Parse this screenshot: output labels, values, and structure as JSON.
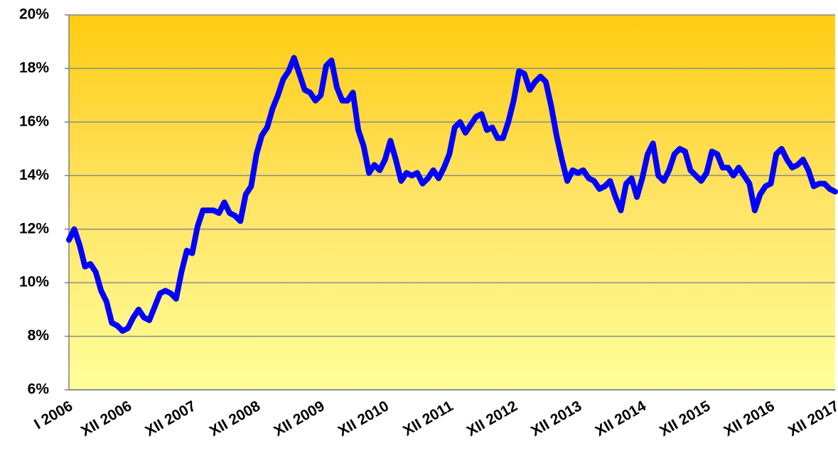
{
  "chart_data": {
    "type": "line",
    "categories": [
      "I 2006",
      null,
      null,
      null,
      null,
      null,
      null,
      null,
      null,
      null,
      null,
      "XII 2006",
      null,
      null,
      null,
      null,
      null,
      null,
      null,
      null,
      null,
      null,
      null,
      "XII 2007",
      null,
      null,
      null,
      null,
      null,
      null,
      null,
      null,
      null,
      null,
      null,
      "XII 2008",
      null,
      null,
      null,
      null,
      null,
      null,
      null,
      null,
      null,
      null,
      null,
      "XII 2009",
      null,
      null,
      null,
      null,
      null,
      null,
      null,
      null,
      null,
      null,
      null,
      "XII 2010",
      null,
      null,
      null,
      null,
      null,
      null,
      null,
      null,
      null,
      null,
      null,
      "XII 2011",
      null,
      null,
      null,
      null,
      null,
      null,
      null,
      null,
      null,
      null,
      null,
      "XII 2012",
      null,
      null,
      null,
      null,
      null,
      null,
      null,
      null,
      null,
      null,
      null,
      "XII 2013",
      null,
      null,
      null,
      null,
      null,
      null,
      null,
      null,
      null,
      null,
      null,
      "XII 2014",
      null,
      null,
      null,
      null,
      null,
      null,
      null,
      null,
      null,
      null,
      null,
      "XII 2015",
      null,
      null,
      null,
      null,
      null,
      null,
      null,
      null,
      null,
      null,
      null,
      "XII 2016",
      null,
      null,
      null,
      null,
      null,
      null,
      null,
      null,
      null,
      null,
      null,
      "XII 2017"
    ],
    "values": [
      11.6,
      12.0,
      11.4,
      10.6,
      10.7,
      10.4,
      9.7,
      9.3,
      8.5,
      8.4,
      8.2,
      8.3,
      8.7,
      9.0,
      8.7,
      8.6,
      9.1,
      9.6,
      9.7,
      9.6,
      9.4,
      10.4,
      11.2,
      11.1,
      12.1,
      12.7,
      12.7,
      12.7,
      12.6,
      13.0,
      12.6,
      12.5,
      12.3,
      13.3,
      13.6,
      14.8,
      15.5,
      15.8,
      16.5,
      17.0,
      17.6,
      17.9,
      18.4,
      17.8,
      17.2,
      17.1,
      16.8,
      17.0,
      18.1,
      18.3,
      17.3,
      16.8,
      16.8,
      17.1,
      15.7,
      15.1,
      14.1,
      14.4,
      14.2,
      14.6,
      15.3,
      14.6,
      13.8,
      14.1,
      14.0,
      14.1,
      13.7,
      13.9,
      14.2,
      13.9,
      14.3,
      14.8,
      15.8,
      16.0,
      15.6,
      15.9,
      16.2,
      16.3,
      15.7,
      15.8,
      15.4,
      15.4,
      16.0,
      16.8,
      17.9,
      17.8,
      17.2,
      17.5,
      17.7,
      17.5,
      16.6,
      15.5,
      14.6,
      13.8,
      14.2,
      14.1,
      14.2,
      13.9,
      13.8,
      13.5,
      13.6,
      13.8,
      13.2,
      12.7,
      13.7,
      13.9,
      13.2,
      13.9,
      14.8,
      15.2,
      14.0,
      13.8,
      14.2,
      14.8,
      15.0,
      14.9,
      14.2,
      14.0,
      13.8,
      14.1,
      14.9,
      14.8,
      14.3,
      14.3,
      14.0,
      14.3,
      14.0,
      13.7,
      12.7,
      13.3,
      13.6,
      13.7,
      14.8,
      15.0,
      14.6,
      14.3,
      14.4,
      14.6,
      14.2,
      13.6,
      13.7,
      13.7,
      13.5,
      13.4
    ],
    "color": "#0000ff",
    "ylim": [
      6,
      20
    ],
    "yticks": [
      {
        "value": 6,
        "label": "6%"
      },
      {
        "value": 8,
        "label": "8%"
      },
      {
        "value": 10,
        "label": "10%"
      },
      {
        "value": 12,
        "label": "12%"
      },
      {
        "value": 14,
        "label": "14%"
      },
      {
        "value": 16,
        "label": "16%"
      },
      {
        "value": 18,
        "label": "18%"
      },
      {
        "value": 20,
        "label": "20%"
      }
    ],
    "grid": true
  }
}
